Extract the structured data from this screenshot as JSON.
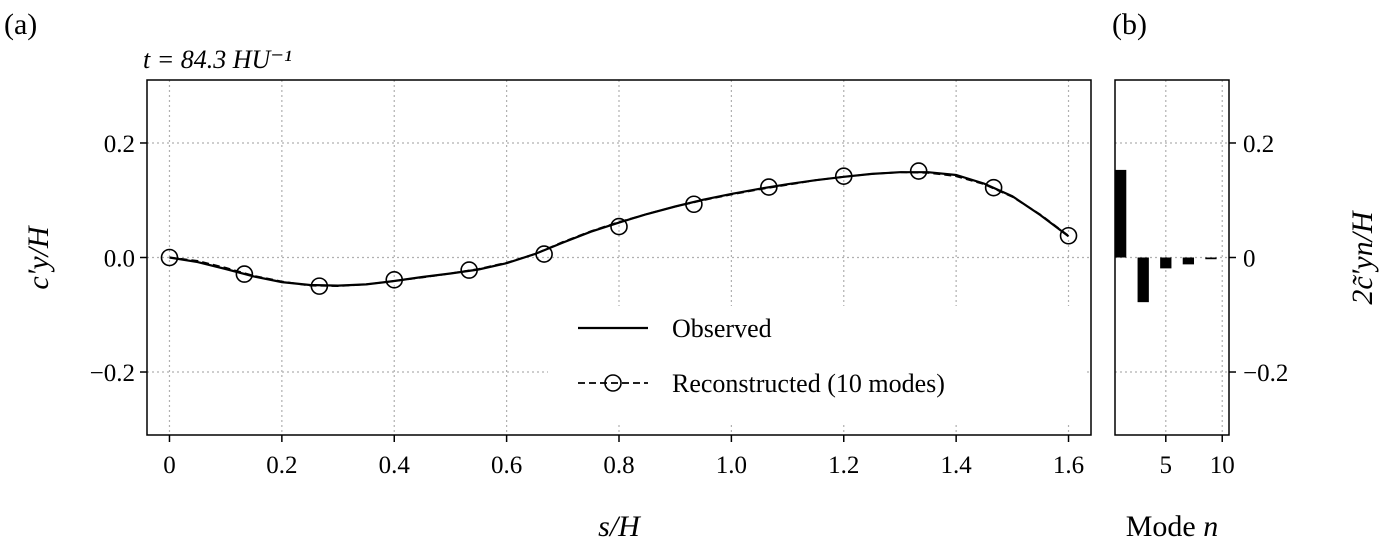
{
  "chart_data": [
    {
      "panel": "(a)",
      "type": "line",
      "annotation": "t = 84.3 HU⁻¹",
      "xlabel": "s/H",
      "ylabel": "c′y/H",
      "xlim": [
        -0.04,
        1.64
      ],
      "ylim": [
        -0.31,
        0.31
      ],
      "xticks": [
        "0",
        "0.2",
        "0.4",
        "0.6",
        "0.8",
        "1.0",
        "1.2",
        "1.4",
        "1.6"
      ],
      "xtick_values": [
        0,
        0.2,
        0.4,
        0.6,
        0.8,
        1.0,
        1.2,
        1.4,
        1.6
      ],
      "yticks": [
        "−0.2",
        "0.0",
        "0.2"
      ],
      "ytick_values": [
        -0.2,
        0.0,
        0.2
      ],
      "grid": true,
      "legend_position": "lower-right",
      "series": [
        {
          "name": "Observed",
          "style": "solid",
          "x": [
            0,
            0.05,
            0.1,
            0.15,
            0.2,
            0.25,
            0.3,
            0.35,
            0.4,
            0.45,
            0.5,
            0.55,
            0.6,
            0.65,
            0.7,
            0.75,
            0.8,
            0.85,
            0.9,
            0.95,
            1.0,
            1.05,
            1.1,
            1.15,
            1.2,
            1.25,
            1.3,
            1.35,
            1.4,
            1.45,
            1.5,
            1.55,
            1.6
          ],
          "y": [
            0.0,
            -0.008,
            -0.02,
            -0.033,
            -0.043,
            -0.048,
            -0.049,
            -0.047,
            -0.041,
            -0.034,
            -0.028,
            -0.021,
            -0.01,
            0.006,
            0.026,
            0.045,
            0.061,
            0.076,
            0.089,
            0.101,
            0.111,
            0.12,
            0.128,
            0.135,
            0.141,
            0.146,
            0.149,
            0.149,
            0.144,
            0.129,
            0.107,
            0.074,
            0.037
          ]
        },
        {
          "name": "Reconstructed (10 modes)",
          "style": "dashed-circles",
          "x": [
            0,
            0.05,
            0.1,
            0.15,
            0.2,
            0.25,
            0.3,
            0.35,
            0.4,
            0.45,
            0.5,
            0.55,
            0.6,
            0.65,
            0.7,
            0.75,
            0.8,
            0.85,
            0.9,
            0.95,
            1.0,
            1.05,
            1.1,
            1.15,
            1.2,
            1.25,
            1.3,
            1.35,
            1.4,
            1.45,
            1.5,
            1.55,
            1.6
          ],
          "y": [
            0.0,
            -0.006,
            -0.018,
            -0.032,
            -0.042,
            -0.049,
            -0.05,
            -0.047,
            -0.041,
            -0.035,
            -0.028,
            -0.02,
            -0.009,
            0.006,
            0.027,
            0.046,
            0.062,
            0.076,
            0.089,
            0.1,
            0.11,
            0.119,
            0.127,
            0.135,
            0.141,
            0.146,
            0.149,
            0.148,
            0.142,
            0.128,
            0.106,
            0.075,
            0.038
          ],
          "marker_x": [
            0,
            0.1333,
            0.2667,
            0.4,
            0.5333,
            0.6667,
            0.8,
            0.9333,
            1.0667,
            1.2,
            1.3333,
            1.4667,
            1.6
          ],
          "marker_y": [
            0.0,
            -0.029,
            -0.05,
            -0.039,
            -0.022,
            0.006,
            0.054,
            0.093,
            0.123,
            0.142,
            0.151,
            0.122,
            0.038
          ]
        }
      ]
    },
    {
      "panel": "(b)",
      "type": "bar",
      "xlabel": "Mode n",
      "ylabel": "2c̃′yn/H",
      "xlim": [
        0.5,
        10.6
      ],
      "ylim": [
        -0.31,
        0.31
      ],
      "xticks": [
        "5",
        "10"
      ],
      "xtick_values": [
        5,
        10
      ],
      "yticks": [
        "−0.2",
        "0",
        "0.2"
      ],
      "ytick_values": [
        -0.2,
        0,
        0.2
      ],
      "grid": true,
      "categories": [
        1,
        2,
        3,
        4,
        5,
        6,
        7,
        8,
        9,
        10
      ],
      "values": [
        0.153,
        0.0,
        -0.078,
        0.0,
        -0.019,
        0.0,
        -0.012,
        0.0,
        -0.003,
        0.0
      ]
    }
  ]
}
